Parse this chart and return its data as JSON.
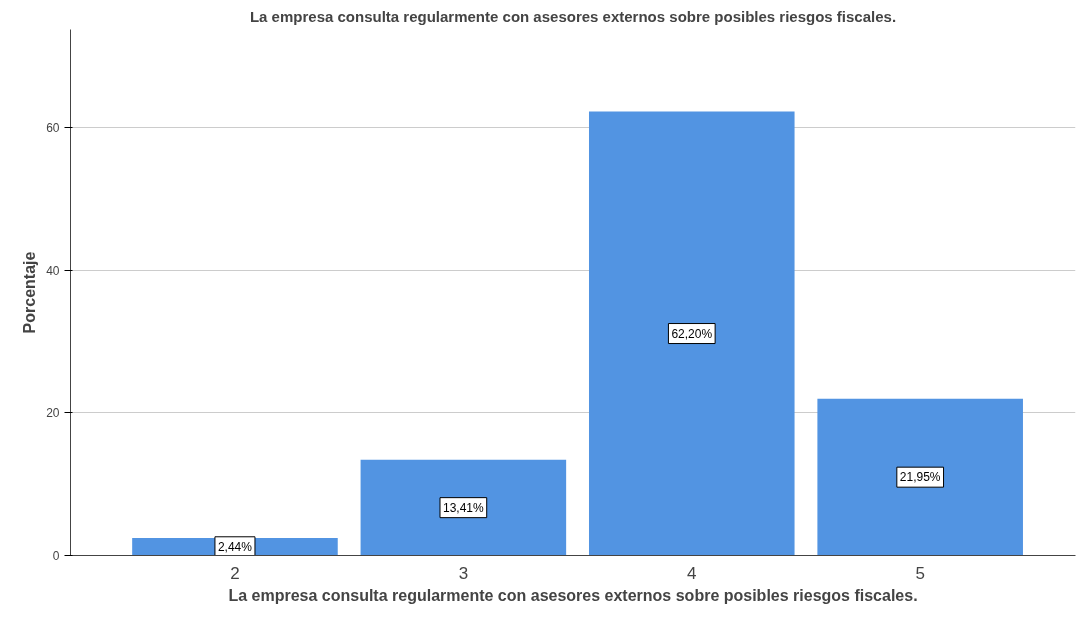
{
  "chart_data": {
    "type": "bar",
    "title": "La empresa consulta regularmente con asesores externos sobre posibles riesgos fiscales.",
    "xlabel": "La empresa consulta regularmente con asesores externos sobre posibles riesgos fiscales.",
    "ylabel": "Porcentaje",
    "categories": [
      "2",
      "3",
      "4",
      "5"
    ],
    "values": [
      2.44,
      13.41,
      62.2,
      21.95
    ],
    "value_labels": [
      "2,44%",
      "13,41%",
      "62,20%",
      "21,95%"
    ],
    "color": "#5294e2",
    "ylim": [
      0,
      73.7
    ],
    "yticks": [
      0,
      20,
      40,
      60
    ],
    "grid": "y"
  }
}
